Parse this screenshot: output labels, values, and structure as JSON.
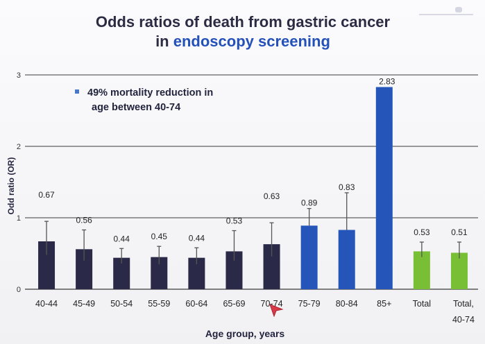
{
  "title": {
    "line1": "Odds ratios of death from gastric cancer",
    "line2_prefix": "in ",
    "line2_accent": "endoscopy screening"
  },
  "annotation": {
    "line1": "49% mortality reduction in",
    "line2": "age between 40-74"
  },
  "colors": {
    "dark_bar": "#2a2a48",
    "blue_bar": "#2555b8",
    "green_bar": "#78bf36",
    "title": "#2b2b44",
    "accent": "#2451b8",
    "grid": "#3a3a3a",
    "cursor": "#d93a4a"
  },
  "chart_data": {
    "type": "bar",
    "title": "Odds ratios of death from gastric cancer in endoscopy screening",
    "xlabel": "Age group, years",
    "ylabel": "Odd ratio (OR)",
    "ylim": [
      0,
      3
    ],
    "yticks": [
      "0",
      "1",
      "2",
      "3"
    ],
    "grid": true,
    "categories": [
      "40-44",
      "45-49",
      "50-54",
      "55-59",
      "60-64",
      "65-69",
      "70-74",
      "75-79",
      "80-84",
      "85+",
      "Total",
      "Total,\n40-74"
    ],
    "values": [
      0.67,
      0.56,
      0.44,
      0.45,
      0.44,
      0.53,
      0.63,
      0.89,
      0.83,
      2.83,
      0.53,
      0.51
    ],
    "data_labels": [
      "0.67",
      "0.56",
      "0.44",
      "0.45",
      "0.44",
      "0.53",
      "0.63",
      "0.89",
      "0.83",
      "2.83",
      "0.53",
      "0.51"
    ],
    "bar_groups": [
      "dark",
      "dark",
      "dark",
      "dark",
      "dark",
      "dark",
      "dark",
      "blue",
      "blue",
      "blue",
      "green",
      "green"
    ],
    "error_upper": [
      0.95,
      0.83,
      0.57,
      0.6,
      0.58,
      0.82,
      0.93,
      1.13,
      1.35,
      2.83,
      0.66,
      0.66
    ],
    "error_lower": [
      0.48,
      0.4,
      0.36,
      0.35,
      0.35,
      0.4,
      0.46,
      0.89,
      0.83,
      2.83,
      0.45,
      0.43
    ]
  }
}
